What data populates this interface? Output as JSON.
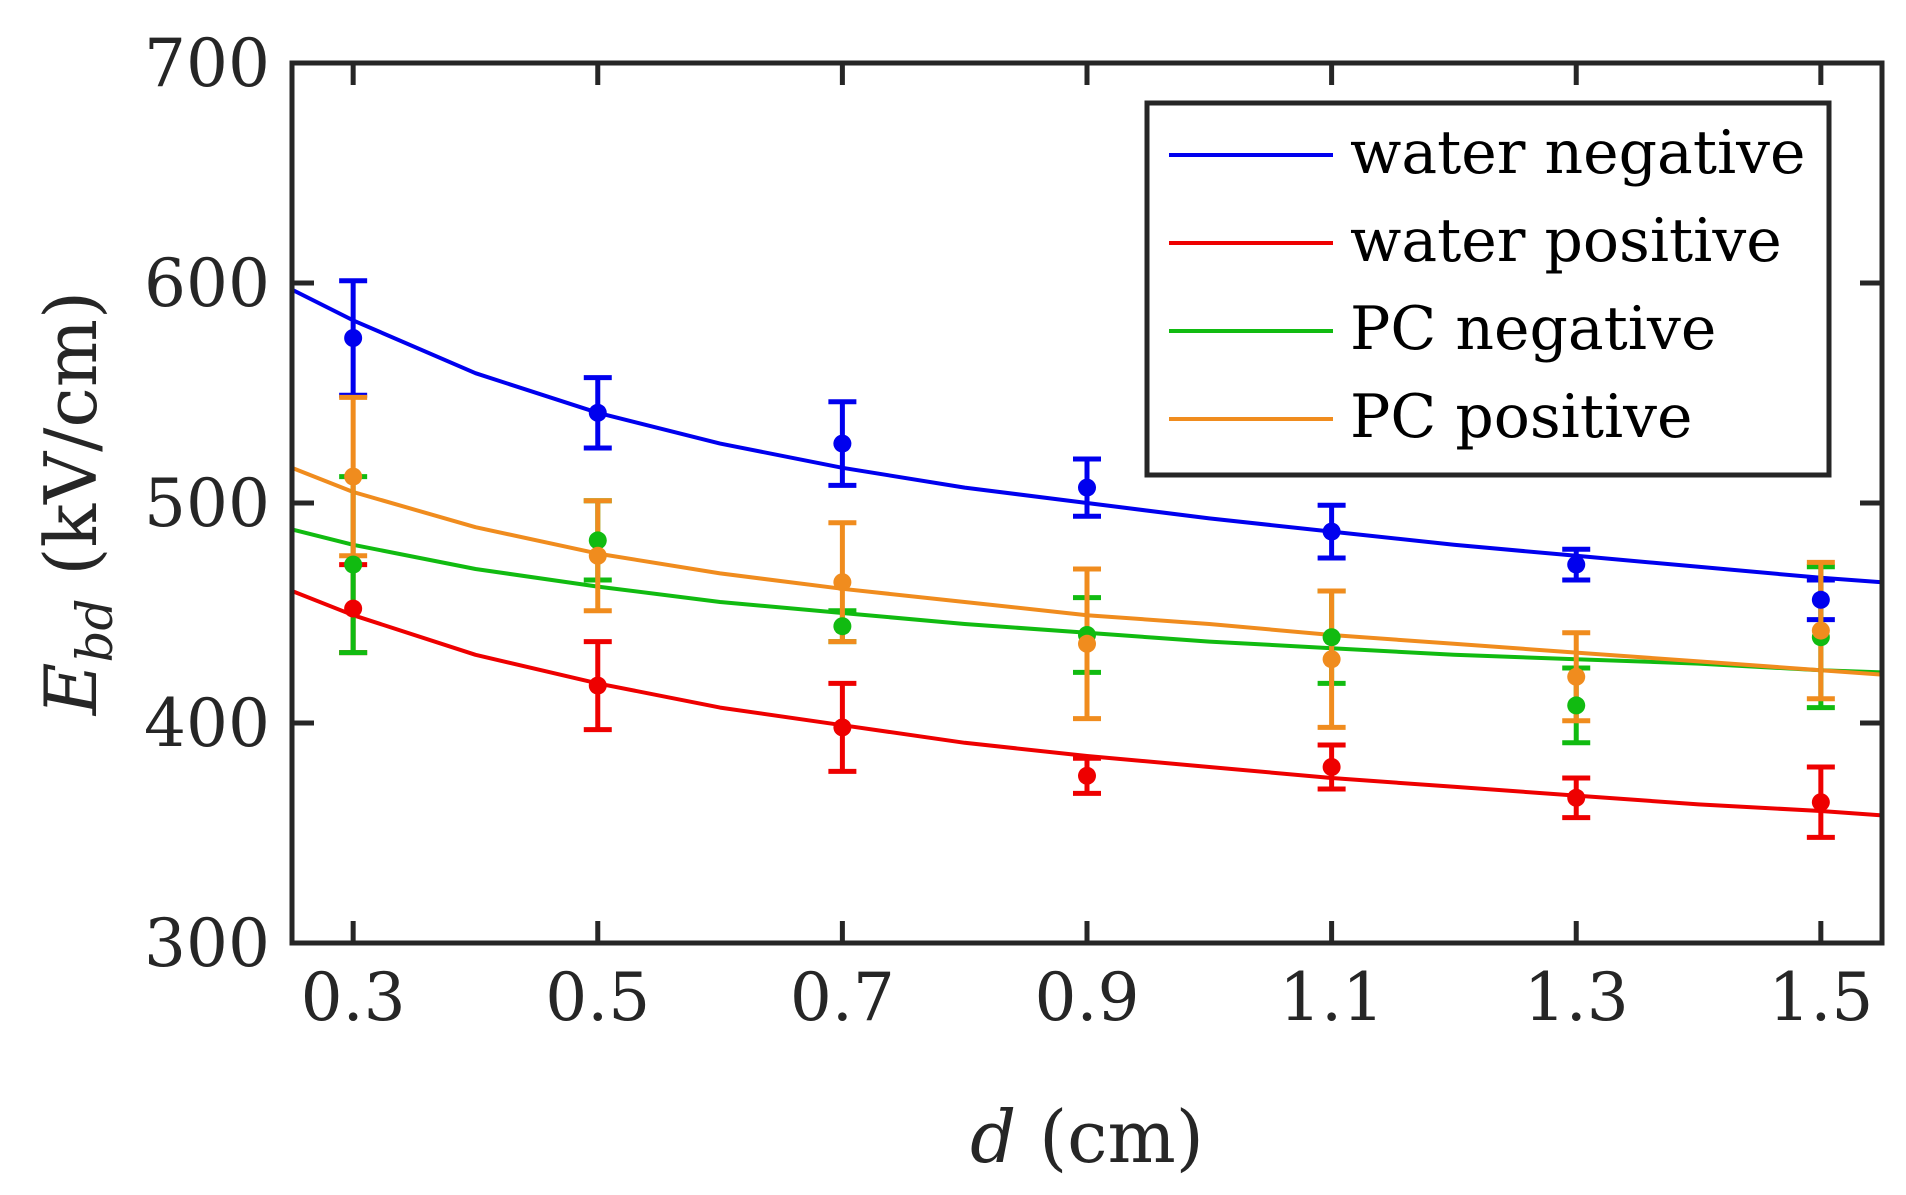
{
  "chart_data": {
    "type": "scatter",
    "title": "",
    "xlabel": {
      "var": "d",
      "unit": " (cm)"
    },
    "ylabel": {
      "var": "E",
      "sub": "bd",
      "unit": " (kV/cm)"
    },
    "xlim": [
      0.25,
      1.55
    ],
    "ylim": [
      300,
      700
    ],
    "xticks": [
      0.3,
      0.5,
      0.7,
      0.9,
      1.1,
      1.3,
      1.5
    ],
    "xtick_labels": [
      "0.3",
      "0.5",
      "0.7",
      "0.9",
      "1.1",
      "1.3",
      "1.5"
    ],
    "yticks": [
      300,
      400,
      500,
      600,
      700
    ],
    "ytick_labels": [
      "300",
      "400",
      "500",
      "600",
      "700"
    ],
    "grid": false,
    "legend_position": "top-right",
    "series": [
      {
        "name": "water negative",
        "color": "#0000ee",
        "x": [
          0.3,
          0.5,
          0.7,
          0.9,
          1.1,
          1.3,
          1.5
        ],
        "y": [
          575,
          541,
          527,
          507,
          487,
          472,
          456
        ],
        "err": [
          26,
          16,
          19,
          13,
          12,
          7,
          9
        ],
        "fit_x": [
          0.25,
          0.3,
          0.4,
          0.5,
          0.6,
          0.7,
          0.8,
          0.9,
          1.0,
          1.1,
          1.2,
          1.3,
          1.4,
          1.5,
          1.55
        ],
        "fit_y": [
          597,
          583,
          559,
          541,
          527,
          516,
          507,
          500,
          493,
          487,
          481,
          476,
          471,
          466,
          464
        ]
      },
      {
        "name": "water positive",
        "color": "#ee0000",
        "x": [
          0.3,
          0.5,
          0.7,
          0.9,
          1.1,
          1.3,
          1.5
        ],
        "y": [
          452,
          417,
          398,
          376,
          380,
          366,
          364
        ],
        "err": [
          20,
          20,
          20,
          8,
          10,
          9,
          16
        ],
        "fit_x": [
          0.25,
          0.3,
          0.4,
          0.5,
          0.6,
          0.7,
          0.8,
          0.9,
          1.0,
          1.1,
          1.2,
          1.3,
          1.4,
          1.5,
          1.55
        ],
        "fit_y": [
          460,
          449,
          431,
          418,
          407,
          399,
          391,
          385,
          380,
          375,
          371,
          367,
          363,
          360,
          358
        ]
      },
      {
        "name": "PC negative",
        "color": "#11bb11",
        "x": [
          0.3,
          0.5,
          0.7,
          0.9,
          1.1,
          1.3,
          1.5
        ],
        "y": [
          472,
          483,
          444,
          440,
          439,
          408,
          439
        ],
        "err": [
          40,
          18,
          7,
          17,
          21,
          17,
          32
        ],
        "fit_x": [
          0.25,
          0.3,
          0.4,
          0.5,
          0.6,
          0.7,
          0.8,
          0.9,
          1.0,
          1.1,
          1.2,
          1.3,
          1.4,
          1.5,
          1.55
        ],
        "fit_y": [
          488,
          481,
          470,
          462,
          455,
          450,
          445,
          441,
          437,
          434,
          431,
          429,
          427,
          424,
          423
        ]
      },
      {
        "name": "PC positive",
        "color": "#f08c1e",
        "x": [
          0.3,
          0.5,
          0.7,
          0.9,
          1.1,
          1.3,
          1.5
        ],
        "y": [
          512,
          476,
          464,
          436,
          429,
          421,
          442
        ],
        "err": [
          36,
          25,
          27,
          34,
          31,
          20,
          31
        ],
        "fit_x": [
          0.25,
          0.3,
          0.4,
          0.5,
          0.6,
          0.7,
          0.8,
          0.9,
          1.0,
          1.1,
          1.2,
          1.3,
          1.4,
          1.5,
          1.55
        ],
        "fit_y": [
          516,
          505,
          489,
          477,
          468,
          461,
          455,
          449,
          445,
          440,
          436,
          432,
          428,
          424,
          422
        ]
      }
    ]
  }
}
